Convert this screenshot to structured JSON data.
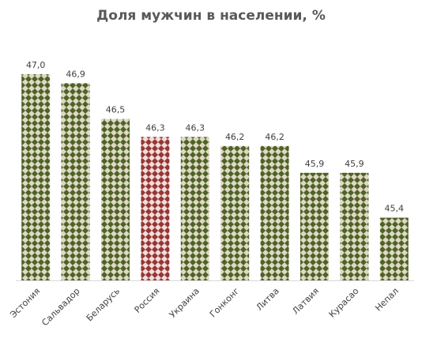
{
  "chart_data": {
    "type": "bar",
    "title": "Доля мужчин в населении, %",
    "xlabel": "",
    "ylabel": "",
    "categories": [
      "Эстония",
      "Сальвадор",
      "Беларусь",
      "Россия",
      "Украина",
      "Гонконг",
      "Литва",
      "Латвия",
      "Курасао",
      "Непал"
    ],
    "values": [
      47.0,
      46.9,
      46.5,
      46.3,
      46.3,
      46.2,
      46.2,
      45.9,
      45.9,
      45.4
    ],
    "data_labels": [
      "47,0",
      "46,9",
      "46,5",
      "46,3",
      "46,3",
      "46,2",
      "46,2",
      "45,9",
      "45,9",
      "45,4"
    ],
    "ylim": [
      44.7,
      47.0
    ],
    "grid": false,
    "legend": "none",
    "highlight_category": "Россия",
    "colors": {
      "bar_pattern_fg": "#4f6228",
      "bar_pattern_bg": "#ddd9c3",
      "highlight_pattern_fg": "#953735",
      "highlight_pattern_bg": "#f2dcdb",
      "axis": "#d9d9d9"
    }
  }
}
